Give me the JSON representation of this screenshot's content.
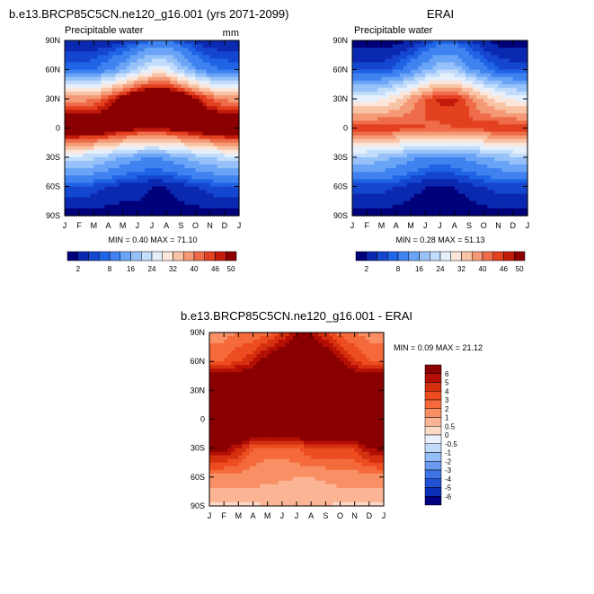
{
  "panels": [
    {
      "title": "b.e13.BRCP85C5CN.ne120_g16.001 (yrs 2071-2099)",
      "subtitle_left": "Precipitable water",
      "subtitle_right": "mm",
      "minmax": "MIN =  0.40 MAX =  71.10",
      "colorbar_orientation": "horizontal",
      "colorbar_labels": [
        "2",
        "8",
        "16",
        "24",
        "32",
        "40",
        "46",
        "50"
      ]
    },
    {
      "title": "ERAI",
      "subtitle_left": "Precipitable water",
      "subtitle_right": "",
      "minmax": "MIN =  0.28 MAX =  51.13",
      "colorbar_orientation": "horizontal",
      "colorbar_labels": [
        "2",
        "8",
        "16",
        "24",
        "32",
        "40",
        "46",
        "50"
      ]
    },
    {
      "title": "b.e13.BRCP85C5CN.ne120_g16.001 - ERAI",
      "subtitle_left": "",
      "subtitle_right": "",
      "minmax": "MIN =  0.09 MAX =  21.12",
      "colorbar_orientation": "vertical",
      "colorbar_labels": [
        "6",
        "5",
        "4",
        "3",
        "2",
        "1",
        "0.5",
        "0",
        "-0.5",
        "-1",
        "-2",
        "-3",
        "-4",
        "-5",
        "-6"
      ]
    }
  ],
  "axes": {
    "x_ticks": [
      "J",
      "F",
      "M",
      "A",
      "M",
      "J",
      "J",
      "A",
      "S",
      "O",
      "N",
      "D",
      "J"
    ],
    "y_ticks": [
      "90N",
      "60N",
      "30N",
      "0",
      "30S",
      "60S",
      "90S"
    ]
  },
  "colors": {
    "pw_scale": [
      "#00007a",
      "#0a28b0",
      "#1446cf",
      "#2064e6",
      "#3f82f0",
      "#6aa4f6",
      "#97c2f9",
      "#c2dcfb",
      "#e6f0fc",
      "#fbe6d9",
      "#f9c3a5",
      "#f59a76",
      "#ef6c4a",
      "#e2401f",
      "#c21b0b",
      "#8a0000"
    ],
    "diff_scale": [
      "#8a0000",
      "#b30f05",
      "#d4300f",
      "#ec4c1f",
      "#f56a3a",
      "#f98f64",
      "#fbb595",
      "#fddac7",
      "#eaf1fc",
      "#c2dafa",
      "#94bcf7",
      "#6a9bf1",
      "#3f74e6",
      "#2050d4",
      "#0c2fb8",
      "#000080"
    ]
  },
  "chart_data": [
    {
      "type": "heatmap",
      "title": "b.e13.BRCP85C5CN.ne120_g16.001 (yrs 2071-2099)",
      "subtitle": "Precipitable water",
      "units": "mm",
      "x": [
        "J",
        "F",
        "M",
        "A",
        "M",
        "J",
        "J",
        "A",
        "S",
        "O",
        "N",
        "D",
        "J"
      ],
      "y": [
        "90S",
        "60S",
        "30S",
        "0",
        "30N",
        "60N",
        "90N"
      ],
      "levels": [
        2,
        4,
        6,
        8,
        12,
        16,
        20,
        24,
        28,
        32,
        36,
        40,
        43,
        46,
        48,
        50
      ],
      "min": 0.4,
      "max": 71.1,
      "values": [
        [
          1,
          1,
          1,
          1,
          1,
          1,
          1,
          1,
          1,
          1,
          1,
          1,
          1
        ],
        [
          6,
          6,
          5,
          4,
          3,
          3,
          2,
          2,
          3,
          4,
          5,
          6,
          6
        ],
        [
          22,
          22,
          21,
          18,
          15,
          13,
          12,
          13,
          15,
          18,
          20,
          22,
          22
        ],
        [
          57,
          57,
          56,
          54,
          52,
          50,
          49,
          50,
          52,
          54,
          56,
          57,
          57
        ],
        [
          38,
          38,
          40,
          45,
          52,
          58,
          61,
          61,
          56,
          49,
          43,
          39,
          38
        ],
        [
          7,
          7,
          8,
          11,
          15,
          21,
          26,
          26,
          19,
          13,
          9,
          8,
          7
        ],
        [
          2,
          2,
          2,
          2,
          3,
          5,
          8,
          8,
          6,
          3,
          2,
          2,
          2
        ]
      ]
    },
    {
      "type": "heatmap",
      "title": "ERAI",
      "subtitle": "Precipitable water",
      "levels": [
        2,
        4,
        6,
        8,
        12,
        16,
        20,
        24,
        28,
        32,
        36,
        40,
        43,
        46,
        48,
        50
      ],
      "min": 0.28,
      "max": 51.13,
      "x": [
        "J",
        "F",
        "M",
        "A",
        "M",
        "J",
        "J",
        "A",
        "S",
        "O",
        "N",
        "D",
        "J"
      ],
      "y": [
        "90S",
        "60S",
        "30S",
        "0",
        "30N",
        "60N",
        "90N"
      ],
      "values": [
        [
          1,
          1,
          1,
          1,
          0.5,
          0.5,
          0.5,
          0.5,
          0.5,
          1,
          1,
          1,
          1
        ],
        [
          5,
          5,
          5,
          4,
          3,
          2,
          2,
          2,
          3,
          4,
          5,
          5,
          5
        ],
        [
          19,
          19,
          18,
          16,
          13,
          11,
          10,
          11,
          13,
          15,
          17,
          19,
          19
        ],
        [
          46,
          46,
          46,
          45,
          44,
          43,
          42,
          43,
          44,
          45,
          46,
          46,
          46
        ],
        [
          26,
          26,
          27,
          31,
          37,
          43,
          47,
          47,
          42,
          35,
          30,
          27,
          26
        ],
        [
          5,
          5,
          5,
          7,
          10,
          15,
          19,
          19,
          13,
          9,
          6,
          5,
          5
        ],
        [
          1,
          1,
          1,
          1,
          2,
          4,
          6,
          6,
          4,
          2,
          1,
          1,
          1
        ]
      ]
    },
    {
      "type": "heatmap",
      "title": "b.e13.BRCP85C5CN.ne120_g16.001 - ERAI",
      "levels": [
        -6,
        -5,
        -4,
        -3,
        -2,
        -1,
        -0.5,
        0,
        0.5,
        1,
        2,
        3,
        4,
        5,
        6
      ],
      "min": 0.09,
      "max": 21.12,
      "x": [
        "J",
        "F",
        "M",
        "A",
        "M",
        "J",
        "J",
        "A",
        "S",
        "O",
        "N",
        "D",
        "J"
      ],
      "y": [
        "90S",
        "60S",
        "30S",
        "0",
        "30N",
        "60N",
        "90N"
      ],
      "values": [
        [
          0.3,
          0.3,
          0.4,
          0.4,
          0.5,
          0.5,
          0.6,
          0.6,
          0.5,
          0.4,
          0.3,
          0.3,
          0.3
        ],
        [
          1.5,
          1.5,
          1.4,
          1.3,
          1.2,
          1.1,
          1.0,
          1.0,
          1.1,
          1.3,
          1.4,
          1.5,
          1.5
        ],
        [
          6.5,
          6.5,
          5,
          3,
          2.5,
          2.5,
          3,
          4,
          4,
          4,
          4,
          6,
          6.5
        ],
        [
          12,
          12,
          12,
          12,
          11,
          11,
          12,
          12,
          12,
          12,
          12,
          12,
          12
        ],
        [
          10,
          10,
          10,
          10,
          10,
          12,
          14,
          14,
          12,
          10,
          10,
          10,
          10
        ],
        [
          3,
          3,
          4,
          5,
          7,
          8,
          10,
          10,
          8,
          6,
          4,
          3,
          3
        ],
        [
          1.5,
          1.5,
          2,
          2,
          2.5,
          4,
          6,
          6,
          4,
          2.5,
          2,
          1.5,
          1.5
        ]
      ]
    }
  ]
}
